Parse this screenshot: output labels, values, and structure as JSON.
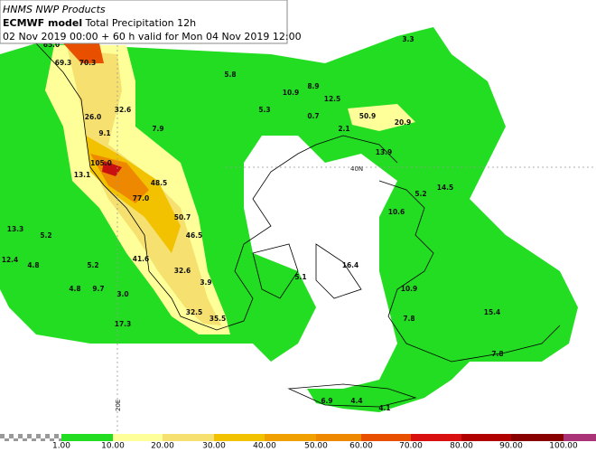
{
  "header": {
    "agency": "HNMS NWP Products",
    "model": "ECMWF model",
    "product": "Total Precipitation 12h",
    "valid": "02 Nov 2019 00:00 + 60 h valid for Mon 04 Nov 2019 12:00"
  },
  "map": {
    "lat_label": "40N",
    "lon_label": "20E",
    "values": [
      "65.0",
      "69.3",
      "70.3",
      "5.8",
      "10.9",
      "8.9",
      "12.5",
      "3.3",
      "5.3",
      "0.7",
      "50.9",
      "20.9",
      "32.6",
      "26.0",
      "7.9",
      "9.1",
      "2.1",
      "13.9",
      "105.0",
      "13.1",
      "48.5",
      "77.0",
      "14.5",
      "5.2",
      "10.6",
      "50.7",
      "13.3",
      "5.2",
      "46.5",
      "12.4",
      "4.8",
      "5.2",
      "41.6",
      "32.6",
      "3.9",
      "4.8",
      "9.7",
      "3.0",
      "5.1",
      "10.9",
      "17.3",
      "32.5",
      "35.5",
      "15.4",
      "7.8",
      "7.8",
      "6.9",
      "4.4",
      "4.1",
      "16.4"
    ]
  },
  "colorbar": {
    "labels": [
      "1.00",
      "10.00",
      "20.00",
      "30.00",
      "40.00",
      "50.00",
      "60.00",
      "70.00",
      "80.00",
      "90.00",
      "100.00"
    ]
  }
}
